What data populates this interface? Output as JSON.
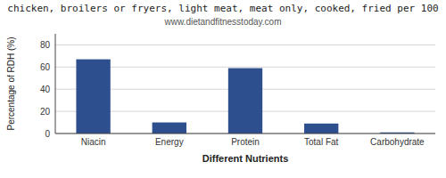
{
  "chart_data": {
    "type": "bar",
    "title": "chicken, broilers or fryers, light meat, meat only, cooked, fried per 100",
    "subtitle": "www.dietandfitnesstoday.com",
    "categories": [
      "Niacin",
      "Energy",
      "Protein",
      "Total Fat",
      "Carbohydrate"
    ],
    "values": [
      67,
      10,
      59,
      9,
      1
    ],
    "color": "#2d4f8e",
    "ylabel": "Percentage of RDH (%)",
    "xlabel": "Different Nutrients",
    "ylim": [
      0,
      90
    ],
    "yticks": [
      0,
      20,
      40,
      60,
      80
    ],
    "grid": true
  }
}
